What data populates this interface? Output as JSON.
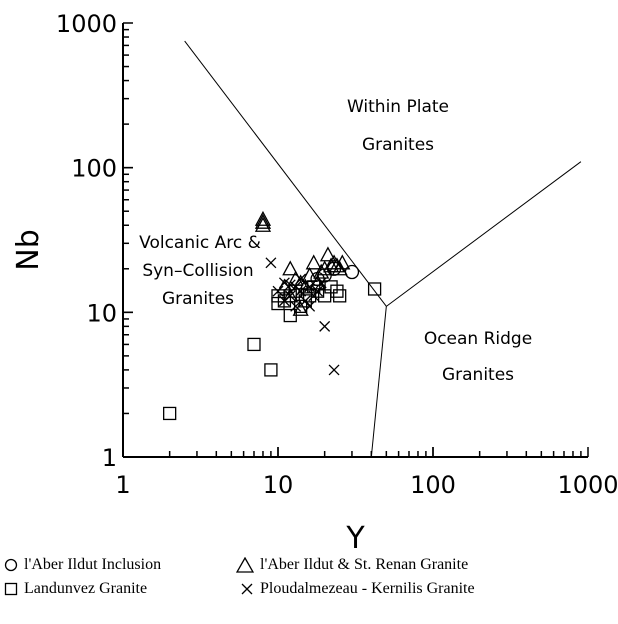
{
  "chart_data": {
    "type": "scatter",
    "xlabel": "Y",
    "ylabel": "Nb",
    "xscale": "log",
    "yscale": "log",
    "xlim": [
      1,
      1000
    ],
    "ylim": [
      1,
      1000
    ],
    "xticks": [
      "1",
      "10",
      "100",
      "1000"
    ],
    "yticks": [
      "1",
      "10",
      "100",
      "1000"
    ],
    "region_labels": [
      "Within Plate",
      "Granites",
      "Volcanic Arc &",
      "Syn–Collision",
      "Granites",
      "Ocean Ridge",
      "Granites"
    ],
    "boundaries": [
      [
        [
          2.5,
          750
        ],
        [
          50,
          11
        ]
      ],
      [
        [
          50,
          11
        ],
        [
          900,
          110
        ]
      ],
      [
        [
          50,
          11
        ],
        [
          40,
          1
        ]
      ]
    ],
    "series": [
      {
        "name": "l'Aber Ildut Inclusion",
        "marker": "circle",
        "points": [
          [
            30,
            19
          ],
          [
            23,
            20
          ],
          [
            20,
            18
          ],
          [
            18,
            17
          ]
        ]
      },
      {
        "name": "l'Aber Ildut & St. Renan Granite",
        "marker": "triangle",
        "points": [
          [
            8,
            44
          ],
          [
            8,
            42
          ],
          [
            8,
            40
          ],
          [
            12,
            20
          ],
          [
            14,
            16
          ],
          [
            16,
            18
          ],
          [
            17,
            22
          ],
          [
            19,
            19
          ],
          [
            20,
            20
          ],
          [
            21,
            25
          ],
          [
            22,
            21
          ],
          [
            23,
            22
          ],
          [
            24,
            21
          ],
          [
            25,
            20
          ],
          [
            26,
            22
          ],
          [
            11,
            15
          ],
          [
            13,
            17
          ],
          [
            18,
            16
          ],
          [
            15,
            15
          ],
          [
            14,
            10.5
          ],
          [
            12,
            13
          ]
        ]
      },
      {
        "name": "Landunvez Granite",
        "marker": "square",
        "points": [
          [
            2,
            2
          ],
          [
            7,
            6
          ],
          [
            9,
            4
          ],
          [
            10,
            11.5
          ],
          [
            11,
            12
          ],
          [
            12,
            9.5
          ],
          [
            12,
            13
          ],
          [
            14,
            11
          ],
          [
            15,
            12
          ],
          [
            16,
            13
          ],
          [
            18,
            14
          ],
          [
            20,
            13
          ],
          [
            22,
            15
          ],
          [
            24,
            14
          ],
          [
            25,
            13
          ],
          [
            42,
            14.5
          ],
          [
            13,
            14
          ],
          [
            17,
            15
          ],
          [
            10,
            13
          ]
        ]
      },
      {
        "name": "Ploudalmezeau - Kernilis Granite",
        "marker": "x",
        "points": [
          [
            9,
            22
          ],
          [
            10,
            14
          ],
          [
            11,
            16
          ],
          [
            12,
            13
          ],
          [
            13,
            15
          ],
          [
            14,
            14
          ],
          [
            15,
            12
          ],
          [
            16,
            15
          ],
          [
            17,
            13
          ],
          [
            18,
            14
          ],
          [
            19,
            16
          ],
          [
            20,
            8
          ],
          [
            23,
            4
          ],
          [
            11,
            12
          ],
          [
            13,
            11
          ],
          [
            16,
            11
          ],
          [
            12,
            15.5
          ],
          [
            14,
            17
          ]
        ]
      }
    ]
  },
  "legend": {
    "items": [
      {
        "label": "l'Aber Ildut Inclusion",
        "marker": "circle"
      },
      {
        "label": "l'Aber Ildut & St. Renan Granite",
        "marker": "triangle"
      },
      {
        "label": "Landunvez Granite",
        "marker": "square"
      },
      {
        "label": "Ploudalmezeau - Kernilis Granite",
        "marker": "x"
      }
    ]
  }
}
